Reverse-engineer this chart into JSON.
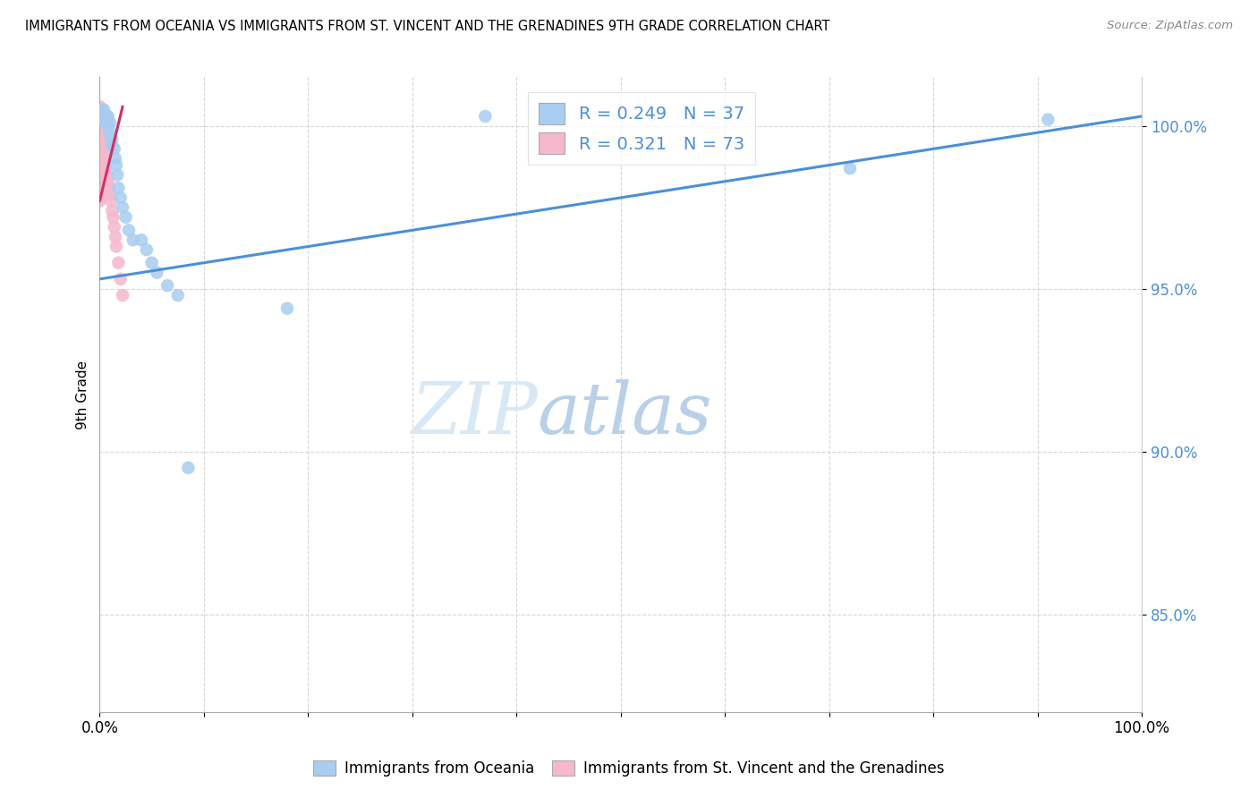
{
  "title": "IMMIGRANTS FROM OCEANIA VS IMMIGRANTS FROM ST. VINCENT AND THE GRENADINES 9TH GRADE CORRELATION CHART",
  "source": "Source: ZipAtlas.com",
  "ylabel": "9th Grade",
  "xlim": [
    0.0,
    1.0
  ],
  "ylim": [
    0.82,
    1.015
  ],
  "yticks": [
    0.85,
    0.9,
    0.95,
    1.0
  ],
  "ytick_labels": [
    "85.0%",
    "90.0%",
    "95.0%",
    "100.0%"
  ],
  "xtick_labels": [
    "0.0%",
    "",
    "",
    "",
    "",
    "",
    "",
    "",
    "",
    "",
    "100.0%"
  ],
  "blue_color": "#a8cdf0",
  "pink_color": "#f5b8cc",
  "line_blue_color": "#4a90d9",
  "line_pink_color": "#cc3366",
  "tick_label_color": "#4a90d9",
  "legend_R_blue": "0.249",
  "legend_N_blue": "37",
  "legend_R_pink": "0.321",
  "legend_N_pink": "73",
  "watermark_zip": "ZIP",
  "watermark_atlas": "atlas",
  "blue_x": [
    0.002,
    0.003,
    0.003,
    0.004,
    0.004,
    0.005,
    0.005,
    0.006,
    0.007,
    0.008,
    0.008,
    0.009,
    0.01,
    0.01,
    0.012,
    0.012,
    0.014,
    0.015,
    0.016,
    0.017,
    0.018,
    0.02,
    0.022,
    0.025,
    0.028,
    0.032,
    0.04,
    0.045,
    0.05,
    0.055,
    0.065,
    0.075,
    0.085,
    0.18,
    0.37,
    0.72,
    0.91
  ],
  "blue_y": [
    1.003,
    1.005,
    1.002,
    1.005,
    1.004,
    1.003,
    1.002,
    1.001,
    1.003,
    1.003,
    1.002,
    0.999,
    1.001,
    0.997,
    0.996,
    0.994,
    0.993,
    0.99,
    0.988,
    0.985,
    0.981,
    0.978,
    0.975,
    0.972,
    0.968,
    0.965,
    0.965,
    0.962,
    0.958,
    0.955,
    0.951,
    0.948,
    0.895,
    0.944,
    1.003,
    0.987,
    1.002
  ],
  "pink_x": [
    0.0,
    0.0,
    0.0,
    0.0,
    0.0,
    0.0,
    0.0,
    0.0,
    0.0,
    0.0,
    0.0,
    0.0,
    0.0,
    0.0,
    0.0,
    0.0,
    0.0,
    0.0,
    0.0,
    0.0,
    0.0,
    0.0,
    0.0,
    0.0,
    0.0,
    0.0,
    0.0,
    0.0,
    0.0,
    0.0,
    0.001,
    0.001,
    0.001,
    0.001,
    0.001,
    0.001,
    0.001,
    0.001,
    0.001,
    0.001,
    0.002,
    0.002,
    0.002,
    0.002,
    0.002,
    0.003,
    0.003,
    0.003,
    0.003,
    0.003,
    0.004,
    0.004,
    0.004,
    0.005,
    0.005,
    0.005,
    0.006,
    0.006,
    0.007,
    0.007,
    0.008,
    0.008,
    0.009,
    0.01,
    0.011,
    0.012,
    0.013,
    0.014,
    0.015,
    0.016,
    0.018,
    0.02,
    0.022
  ],
  "pink_y": [
    1.006,
    1.005,
    1.004,
    1.003,
    1.002,
    1.001,
    1.0,
    0.999,
    0.998,
    0.997,
    0.996,
    0.995,
    0.994,
    0.993,
    0.992,
    0.991,
    0.99,
    0.989,
    0.988,
    0.987,
    0.986,
    0.985,
    0.984,
    0.983,
    0.982,
    0.981,
    0.98,
    0.979,
    0.978,
    0.977,
    1.003,
    1.001,
    0.999,
    0.997,
    0.995,
    0.993,
    0.991,
    0.989,
    0.987,
    0.985,
    1.002,
    0.999,
    0.996,
    0.993,
    0.989,
    0.997,
    0.994,
    0.991,
    0.988,
    0.985,
    0.994,
    0.991,
    0.988,
    0.99,
    0.987,
    0.984,
    0.987,
    0.984,
    0.985,
    0.982,
    0.983,
    0.98,
    0.981,
    0.979,
    0.977,
    0.974,
    0.972,
    0.969,
    0.966,
    0.963,
    0.958,
    0.953,
    0.948
  ],
  "blue_line_x0": 0.0,
  "blue_line_x1": 1.0,
  "blue_line_y0": 0.953,
  "blue_line_y1": 1.003,
  "pink_line_x0": 0.0,
  "pink_line_x1": 0.022,
  "pink_line_y0": 0.977,
  "pink_line_y1": 1.006,
  "pink_line_dashed_x0": 0.0,
  "pink_line_dashed_x1": 0.022,
  "pink_line_dashed_y0": 0.977,
  "pink_line_dashed_y1": 1.006
}
